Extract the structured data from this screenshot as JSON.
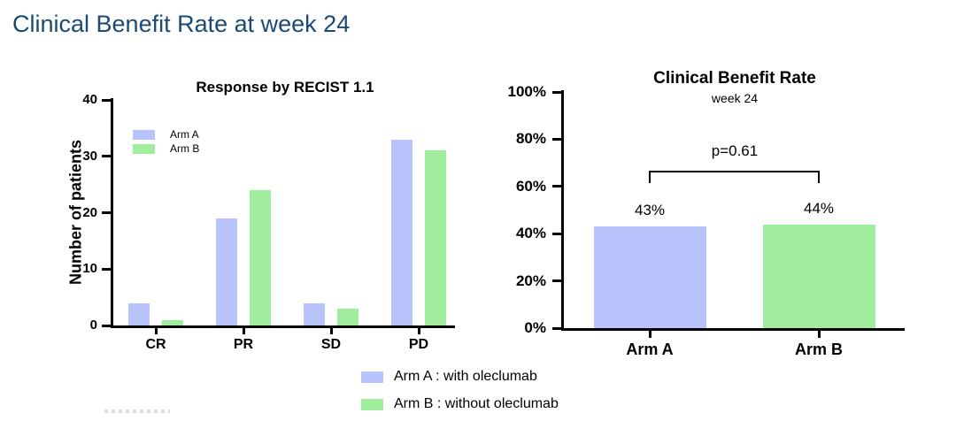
{
  "page_title": "Clinical Benefit Rate at week 24",
  "colors": {
    "arm_a": "#b8c3fb",
    "arm_b": "#a0ed9e",
    "title_blue": "#1b4a74",
    "axis": "#000000"
  },
  "chart_data": [
    {
      "id": "recist-response",
      "type": "bar",
      "title": "Response by RECIST 1.1",
      "xlabel": "",
      "ylabel": "Number of patients",
      "categories": [
        "CR",
        "PR",
        "SD",
        "PD"
      ],
      "series": [
        {
          "name": "Arm A",
          "color": "#b8c3fb",
          "values": [
            4,
            19,
            4,
            33
          ]
        },
        {
          "name": "Arm B",
          "color": "#a0ed9e",
          "values": [
            1,
            24,
            3,
            31
          ]
        }
      ],
      "ylim": [
        0,
        40
      ],
      "yticks": [
        0,
        10,
        20,
        30,
        40
      ],
      "grid": false,
      "legend_position": "inside-upper-left"
    },
    {
      "id": "clinical-benefit-rate",
      "type": "bar",
      "title": "Clinical Benefit Rate",
      "subtitle": "week 24",
      "xlabel": "",
      "ylabel": "",
      "categories": [
        "Arm A",
        "Arm B"
      ],
      "values": [
        43,
        44
      ],
      "value_labels": [
        "43%",
        "44%"
      ],
      "bar_colors": [
        "#b8c3fb",
        "#a0ed9e"
      ],
      "ylim": [
        0,
        100
      ],
      "yticks": [
        0,
        20,
        40,
        60,
        80,
        100
      ],
      "ytick_labels": [
        "0%",
        "20%",
        "40%",
        "60%",
        "80%",
        "100%"
      ],
      "grid": false,
      "annotation": {
        "text": "p=0.61",
        "between": [
          "Arm A",
          "Arm B"
        ]
      }
    }
  ],
  "bottom_legend": [
    {
      "series": "Arm A",
      "label": "Arm A : with oleclumab"
    },
    {
      "series": "Arm B",
      "label": "Arm B : without oleclumab"
    }
  ]
}
